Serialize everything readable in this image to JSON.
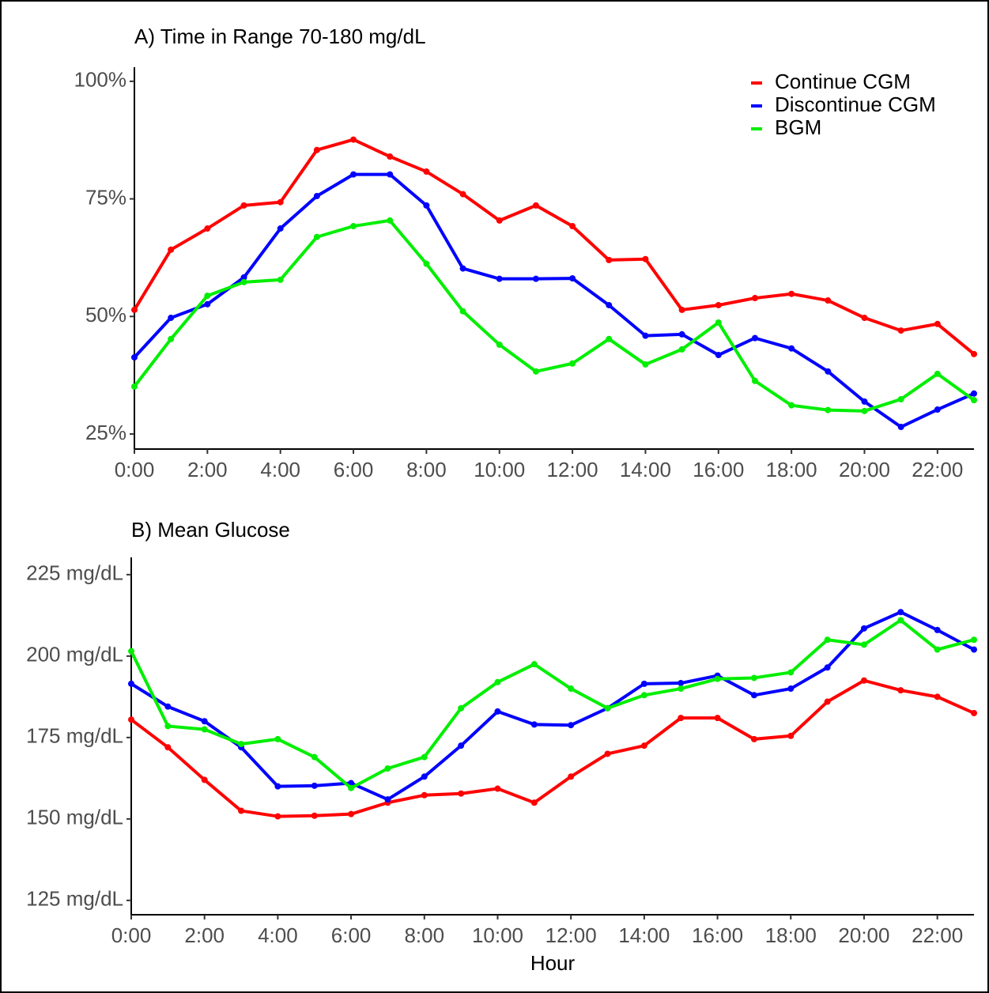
{
  "chart_data": [
    {
      "type": "line",
      "title": "A) Time in Range 70-180 mg/dL",
      "x": [
        0,
        1,
        2,
        3,
        4,
        5,
        6,
        7,
        8,
        9,
        10,
        11,
        12,
        13,
        14,
        15,
        16,
        17,
        18,
        19,
        20,
        21,
        22,
        23
      ],
      "xlim": [
        0,
        23
      ],
      "xticks": [
        {
          "value": 0,
          "label": "0:00"
        },
        {
          "value": 2,
          "label": "2:00"
        },
        {
          "value": 4,
          "label": "4:00"
        },
        {
          "value": 6,
          "label": "6:00"
        },
        {
          "value": 8,
          "label": "8:00"
        },
        {
          "value": 10,
          "label": "10:00"
        },
        {
          "value": 12,
          "label": "12:00"
        },
        {
          "value": 14,
          "label": "14:00"
        },
        {
          "value": 16,
          "label": "16:00"
        },
        {
          "value": 18,
          "label": "18:00"
        },
        {
          "value": 20,
          "label": "20:00"
        },
        {
          "value": 22,
          "label": "22:00"
        }
      ],
      "ylim": [
        21.8,
        103
      ],
      "yticks": [
        {
          "value": 25,
          "label": "25%"
        },
        {
          "value": 50,
          "label": "50%"
        },
        {
          "value": 75,
          "label": "75%"
        },
        {
          "value": 100,
          "label": "100%"
        }
      ],
      "legend": "top-right",
      "series": [
        {
          "name": "Continue CGM",
          "color": "#ff0000",
          "values": [
            51.4,
            64.2,
            68.7,
            73.6,
            74.3,
            85.4,
            87.6,
            84.0,
            80.8,
            76.0,
            70.4,
            73.6,
            69.2,
            62.0,
            62.2,
            51.4,
            52.4,
            53.9,
            54.8,
            53.4,
            49.7,
            47.0,
            48.4,
            42.0
          ]
        },
        {
          "name": "Discontinue CGM",
          "color": "#0000ff",
          "values": [
            41.3,
            49.7,
            52.6,
            58.3,
            68.7,
            75.6,
            80.2,
            80.2,
            73.6,
            60.2,
            58.0,
            58.0,
            58.1,
            52.4,
            45.9,
            46.2,
            41.8,
            45.4,
            43.2,
            38.3,
            31.9,
            26.5,
            30.2,
            33.6
          ]
        },
        {
          "name": "BGM",
          "color": "#00ee00",
          "values": [
            35.1,
            45.2,
            54.4,
            57.3,
            57.8,
            66.9,
            69.2,
            70.4,
            61.2,
            51.1,
            44.0,
            38.3,
            40.0,
            45.2,
            39.8,
            43.0,
            48.7,
            36.3,
            31.1,
            30.1,
            29.9,
            32.4,
            37.8,
            32.2
          ]
        }
      ]
    },
    {
      "type": "line",
      "title": "B) Mean Glucose",
      "x_label": "Hour",
      "x": [
        0,
        1,
        2,
        3,
        4,
        5,
        6,
        7,
        8,
        9,
        10,
        11,
        12,
        13,
        14,
        15,
        16,
        17,
        18,
        19,
        20,
        21,
        22,
        23
      ],
      "xlim": [
        0,
        23
      ],
      "xticks": [
        {
          "value": 0,
          "label": "0:00"
        },
        {
          "value": 2,
          "label": "2:00"
        },
        {
          "value": 4,
          "label": "4:00"
        },
        {
          "value": 6,
          "label": "6:00"
        },
        {
          "value": 8,
          "label": "8:00"
        },
        {
          "value": 10,
          "label": "10:00"
        },
        {
          "value": 12,
          "label": "12:00"
        },
        {
          "value": 14,
          "label": "14:00"
        },
        {
          "value": 16,
          "label": "16:00"
        },
        {
          "value": 18,
          "label": "18:00"
        },
        {
          "value": 20,
          "label": "20:00"
        },
        {
          "value": 22,
          "label": "22:00"
        }
      ],
      "ylim": [
        120.6,
        230.3
      ],
      "yticks": [
        {
          "value": 125,
          "label": "125 mg/dL"
        },
        {
          "value": 150,
          "label": "150 mg/dL"
        },
        {
          "value": 175,
          "label": "175 mg/dL"
        },
        {
          "value": 200,
          "label": "200 mg/dL"
        },
        {
          "value": 225,
          "label": "225 mg/dL"
        }
      ],
      "series": [
        {
          "color": "#ff0000",
          "values": [
            180.5,
            172,
            162,
            152.5,
            150.8,
            151,
            151.5,
            155,
            157.3,
            157.8,
            159.3,
            155,
            163,
            170,
            172.5,
            181,
            181,
            174.5,
            175.5,
            186,
            192.5,
            189.5,
            187.5,
            182.5
          ]
        },
        {
          "color": "#0000ff",
          "values": [
            191.5,
            184.5,
            180,
            172,
            160,
            160.2,
            161,
            156,
            163,
            172.5,
            183,
            179,
            178.8,
            184,
            191.5,
            191.7,
            194,
            188,
            190,
            196.5,
            208.5,
            213.5,
            208,
            202
          ]
        },
        {
          "color": "#00ee00",
          "values": [
            201.5,
            178.5,
            177.5,
            173,
            174.5,
            169,
            159.5,
            165.5,
            169,
            184,
            192,
            197.5,
            190,
            184,
            188,
            190,
            193,
            193.3,
            195,
            205,
            203.5,
            211,
            202,
            205
          ]
        }
      ]
    }
  ]
}
